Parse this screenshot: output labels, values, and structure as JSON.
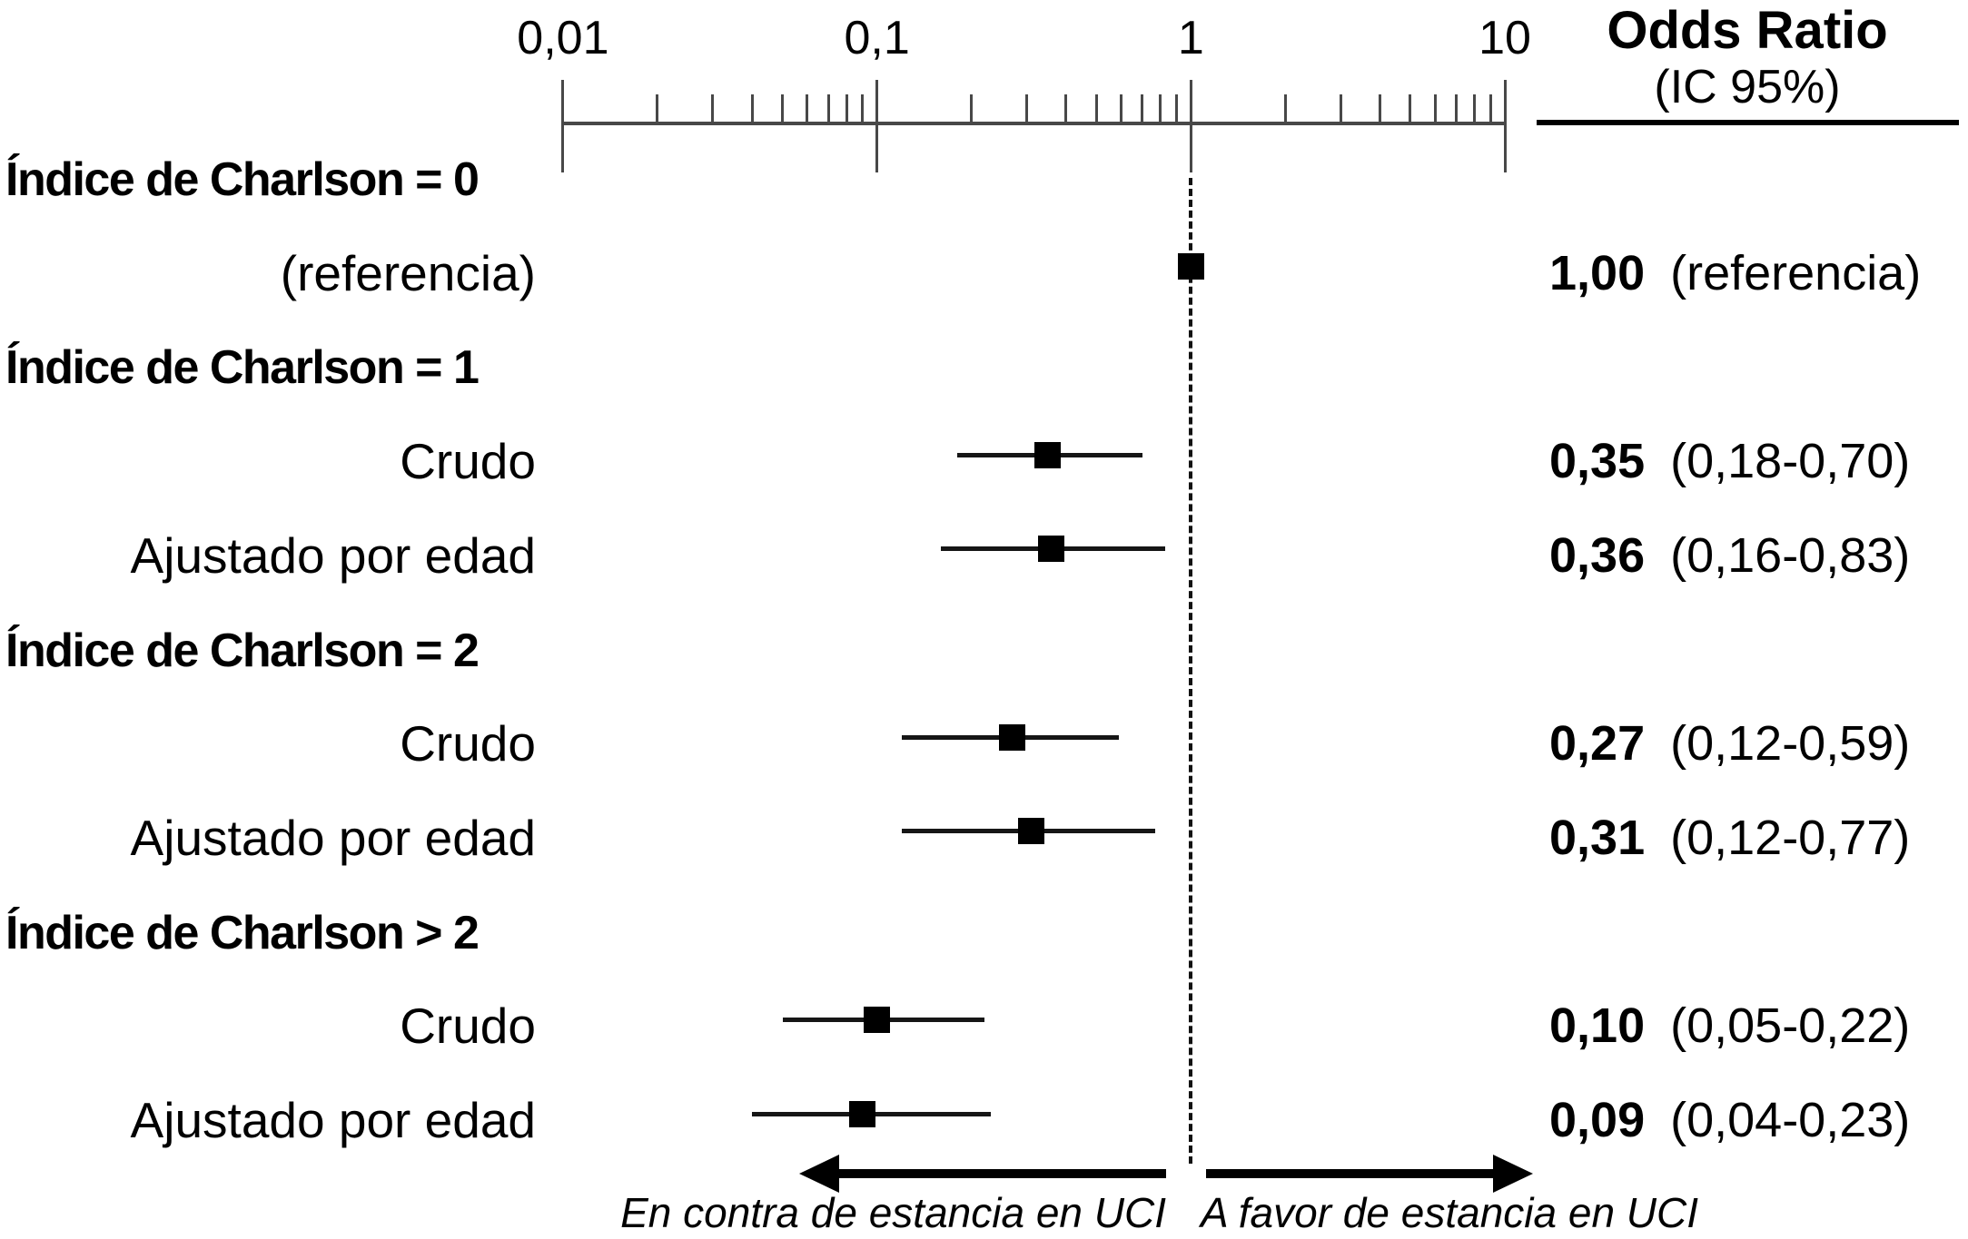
{
  "chart_data": {
    "type": "forest",
    "title": "",
    "x_axis": {
      "scale": "log",
      "range": [
        0.01,
        10
      ],
      "ticks": [
        {
          "v": 0.01,
          "label": "0,01"
        },
        {
          "v": 0.1,
          "label": "0,1"
        },
        {
          "v": 1,
          "label": "1"
        },
        {
          "v": 10,
          "label": "10"
        }
      ]
    },
    "column_header": {
      "line1": "Odds Ratio",
      "line2": "(IC 95%)"
    },
    "reference_line_at": 1,
    "rows": [
      {
        "kind": "group",
        "label": "Índice de Charlson = 0"
      },
      {
        "kind": "estimate",
        "label": "(referencia)",
        "or": 1.0,
        "lo": null,
        "hi": null,
        "or_text": "1,00",
        "ci_text": "(referencia)"
      },
      {
        "kind": "group",
        "label": "Índice de Charlson = 1"
      },
      {
        "kind": "estimate",
        "label": "Crudo",
        "or": 0.35,
        "lo": 0.18,
        "hi": 0.7,
        "or_text": "0,35",
        "ci_text": "(0,18-0,70)"
      },
      {
        "kind": "estimate",
        "label": "Ajustado por edad",
        "or": 0.36,
        "lo": 0.16,
        "hi": 0.83,
        "or_text": "0,36",
        "ci_text": "(0,16-0,83)"
      },
      {
        "kind": "group",
        "label": "Índice de Charlson = 2"
      },
      {
        "kind": "estimate",
        "label": "Crudo",
        "or": 0.27,
        "lo": 0.12,
        "hi": 0.59,
        "or_text": "0,27",
        "ci_text": "(0,12-0,59)"
      },
      {
        "kind": "estimate",
        "label": "Ajustado por edad",
        "or": 0.31,
        "lo": 0.12,
        "hi": 0.77,
        "or_text": "0,31",
        "ci_text": "(0,12-0,77)"
      },
      {
        "kind": "group",
        "label": "Índice de Charlson > 2"
      },
      {
        "kind": "estimate",
        "label": "Crudo",
        "or": 0.1,
        "lo": 0.05,
        "hi": 0.22,
        "or_text": "0,10",
        "ci_text": "(0,05-0,22)"
      },
      {
        "kind": "estimate",
        "label": "Ajustado por edad",
        "or": 0.09,
        "lo": 0.04,
        "hi": 0.23,
        "or_text": "0,09",
        "ci_text": "(0,04-0,23)"
      }
    ],
    "footer": {
      "left_arrow_label": "En contra de estancia en UCI",
      "right_arrow_label": "A favor de estancia en UCI"
    },
    "colors": {
      "mark": "#000000",
      "axis": "#484848",
      "text": "#000000",
      "background": "#ffffff"
    },
    "legend": null,
    "grid": false
  }
}
